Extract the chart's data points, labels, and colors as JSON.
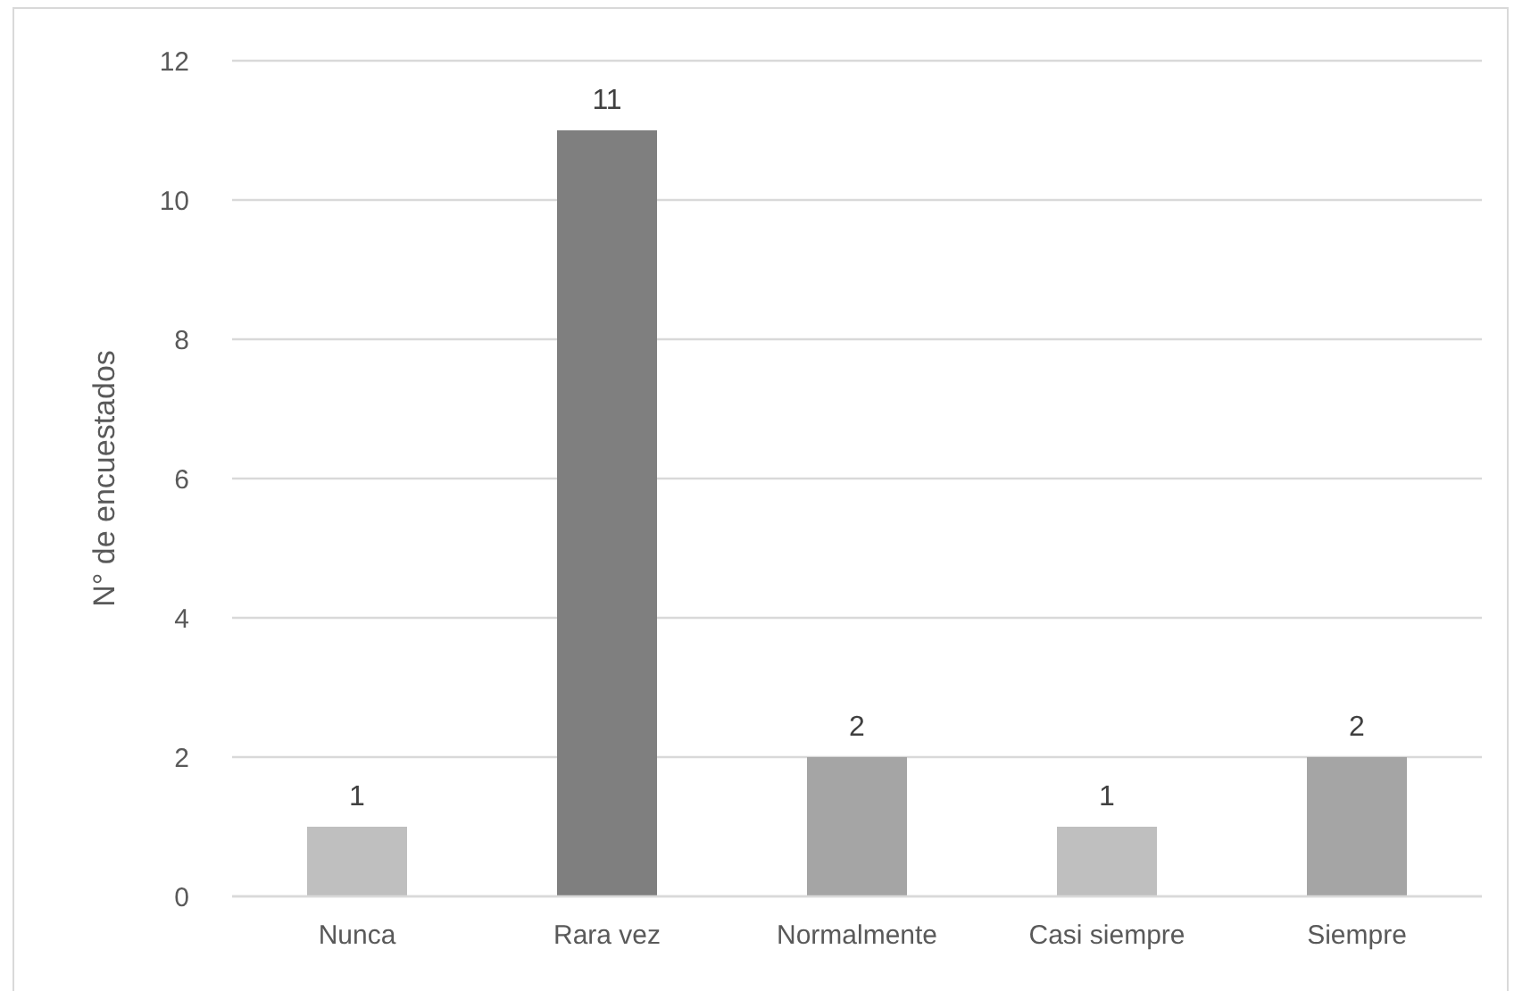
{
  "chart_data": {
    "type": "bar",
    "ylabel": "N° de encuestados",
    "categories": [
      "Nunca",
      "Rara vez",
      "Normalmente",
      "Casi siempre",
      "Siempre"
    ],
    "values": [
      1,
      11,
      2,
      1,
      2
    ],
    "colors": [
      "#bfbfbf",
      "#7f7f7f",
      "#a5a5a5",
      "#bfbfbf",
      "#a5a5a5"
    ],
    "ylim": [
      0,
      12
    ],
    "yticks": [
      0,
      2,
      4,
      6,
      8,
      10,
      12
    ],
    "grid": "y",
    "data_labels": true
  }
}
